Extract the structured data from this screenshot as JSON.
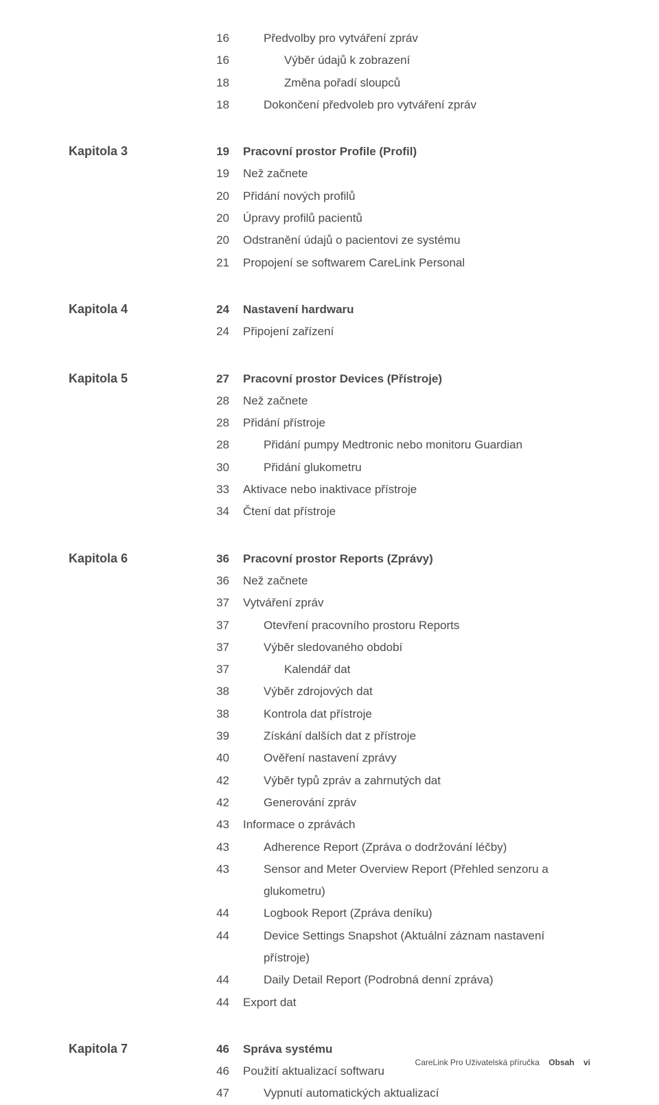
{
  "pre_items": [
    {
      "page": "16",
      "title": "Předvolby pro vytváření zpráv",
      "indent": 1
    },
    {
      "page": "16",
      "title": "Výběr údajů k zobrazení",
      "indent": 2
    },
    {
      "page": "18",
      "title": "Změna pořadí sloupců",
      "indent": 2
    },
    {
      "page": "18",
      "title": "Dokončení předvoleb pro vytváření zpráv",
      "indent": 1
    }
  ],
  "chapters": [
    {
      "label": "Kapitola 3",
      "page": "19",
      "title": "Pracovní prostor Profile (Profil)",
      "items": [
        {
          "page": "19",
          "title": "Než začnete",
          "indent": 0
        },
        {
          "page": "20",
          "title": "Přidání nových profilů",
          "indent": 0
        },
        {
          "page": "20",
          "title": "Úpravy profilů pacientů",
          "indent": 0
        },
        {
          "page": "20",
          "title": "Odstranění údajů o pacientovi ze systému",
          "indent": 0
        },
        {
          "page": "21",
          "title": "Propojení se softwarem CareLink Personal",
          "indent": 0
        }
      ]
    },
    {
      "label": "Kapitola 4",
      "page": "24",
      "title": "Nastavení hardwaru",
      "items": [
        {
          "page": "24",
          "title": "Připojení zařízení",
          "indent": 0
        }
      ]
    },
    {
      "label": "Kapitola 5",
      "page": "27",
      "title": "Pracovní prostor Devices (Přístroje)",
      "items": [
        {
          "page": "28",
          "title": "Než začnete",
          "indent": 0
        },
        {
          "page": "28",
          "title": "Přidání přístroje",
          "indent": 0
        },
        {
          "page": "28",
          "title": "Přidání pumpy Medtronic nebo monitoru Guardian",
          "indent": 1
        },
        {
          "page": "30",
          "title": "Přidání glukometru",
          "indent": 1
        },
        {
          "page": "33",
          "title": "Aktivace nebo inaktivace přístroje",
          "indent": 0
        },
        {
          "page": "34",
          "title": "Čtení dat přístroje",
          "indent": 0
        }
      ]
    },
    {
      "label": "Kapitola 6",
      "page": "36",
      "title": "Pracovní prostor Reports (Zprávy)",
      "items": [
        {
          "page": "36",
          "title": "Než začnete",
          "indent": 0
        },
        {
          "page": "37",
          "title": "Vytváření zpráv",
          "indent": 0
        },
        {
          "page": "37",
          "title": "Otevření pracovního prostoru Reports",
          "indent": 1
        },
        {
          "page": "37",
          "title": "Výběr sledovaného období",
          "indent": 1
        },
        {
          "page": "37",
          "title": "Kalendář dat",
          "indent": 2
        },
        {
          "page": "38",
          "title": "Výběr zdrojových dat",
          "indent": 1
        },
        {
          "page": "38",
          "title": "Kontrola dat přístroje",
          "indent": 1
        },
        {
          "page": "39",
          "title": "Získání dalších dat z přístroje",
          "indent": 1
        },
        {
          "page": "40",
          "title": "Ověření nastavení zprávy",
          "indent": 1
        },
        {
          "page": "42",
          "title": "Výběr typů zpráv a zahrnutých dat",
          "indent": 1
        },
        {
          "page": "42",
          "title": "Generování zpráv",
          "indent": 1
        },
        {
          "page": "43",
          "title": "Informace o zprávách",
          "indent": 0
        },
        {
          "page": "43",
          "title": "Adherence Report (Zpráva o dodržování léčby)",
          "indent": 1
        },
        {
          "page": "43",
          "title": "Sensor and Meter Overview Report (Přehled senzoru a glukometru)",
          "indent": 1
        },
        {
          "page": "44",
          "title": "Logbook Report (Zpráva deníku)",
          "indent": 1
        },
        {
          "page": "44",
          "title": "Device Settings Snapshot (Aktuální záznam nastavení přístroje)",
          "indent": 1
        },
        {
          "page": "44",
          "title": "Daily Detail Report (Podrobná denní zpráva)",
          "indent": 1
        },
        {
          "page": "44",
          "title": "Export dat",
          "indent": 0
        }
      ]
    },
    {
      "label": "Kapitola 7",
      "page": "46",
      "title": "Správa systému",
      "items": [
        {
          "page": "46",
          "title": "Použití aktualizací softwaru",
          "indent": 0
        },
        {
          "page": "47",
          "title": "Vypnutí automatických aktualizací",
          "indent": 1
        }
      ]
    }
  ],
  "footer": {
    "product": "CareLink Pro Uživatelská příručka",
    "section": "Obsah",
    "folio": "vi"
  }
}
